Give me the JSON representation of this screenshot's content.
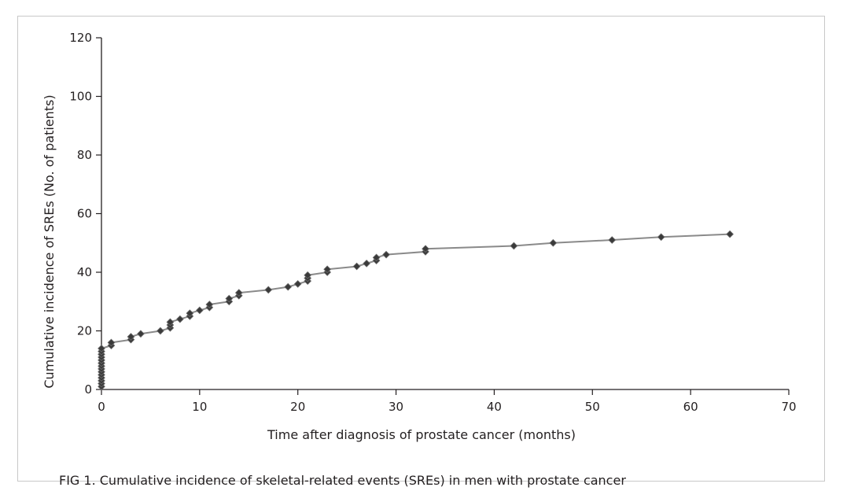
{
  "caption": "FIG 1.  Cumulative incidence of skeletal-related events (SREs) in men with prostate cancer",
  "colors": {
    "line": "#8a8a8a",
    "marker": "#3a3a3a",
    "axis": "#231f20",
    "border": "#c8c8c8"
  },
  "chart_data": {
    "type": "line",
    "title": "",
    "xlabel": "Time after diagnosis of prostate cancer (months)",
    "ylabel": "Cumulative incidence of SREs (No. of patients)",
    "xlim": [
      0,
      70
    ],
    "ylim": [
      0,
      120
    ],
    "x_ticks": [
      0,
      10,
      20,
      30,
      40,
      50,
      60,
      70
    ],
    "y_ticks": [
      0,
      20,
      40,
      60,
      80,
      100,
      120
    ],
    "grid": false,
    "legend": "none",
    "series": [
      {
        "marker": "diamond",
        "x": [
          0,
          0,
          0,
          0,
          0,
          0,
          0,
          0,
          0,
          0,
          0,
          0,
          0,
          0,
          1,
          1,
          3,
          3,
          4,
          6,
          7,
          7,
          7,
          8,
          9,
          9,
          10,
          11,
          11,
          13,
          13,
          14,
          14,
          17,
          19,
          20,
          21,
          21,
          21,
          23,
          23,
          26,
          27,
          28,
          28,
          29,
          33,
          33,
          42,
          46,
          52,
          57,
          64
        ],
        "y": [
          1,
          2,
          3,
          4,
          5,
          6,
          7,
          8,
          9,
          10,
          11,
          12,
          13,
          14,
          15,
          16,
          17,
          18,
          19,
          20,
          21,
          22,
          23,
          24,
          25,
          26,
          27,
          28,
          29,
          30,
          31,
          32,
          33,
          34,
          35,
          36,
          37,
          38,
          39,
          40,
          41,
          42,
          43,
          44,
          45,
          46,
          47,
          48,
          49,
          50,
          51,
          52,
          53
        ]
      }
    ]
  }
}
